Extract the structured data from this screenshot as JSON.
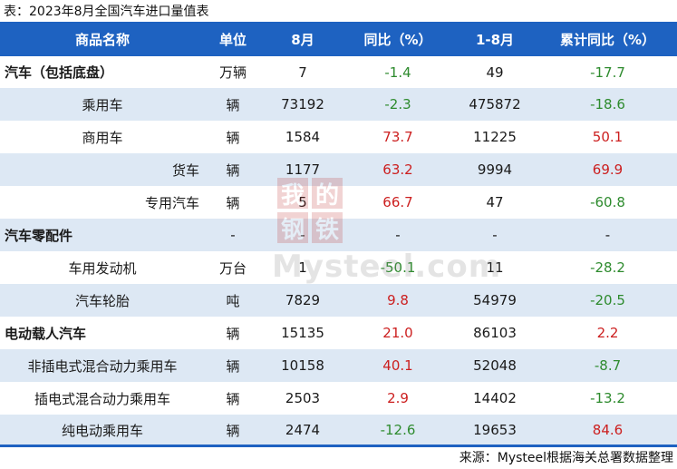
{
  "caption": "表：2023年8月全国汽车进口量值表",
  "headers": {
    "name": "商品名称",
    "unit": "单位",
    "aug": "8月",
    "yoy": "同比（%）",
    "ytd": "1-8月",
    "cum_yoy": "累计同比（%）"
  },
  "rows": [
    {
      "name": "汽车（包括底盘）",
      "unit": "万辆",
      "aug": "7",
      "yoy": "-1.4",
      "ytd": "49",
      "cum_yoy": "-17.7"
    },
    {
      "name": "乘用车",
      "unit": "辆",
      "aug": "73192",
      "yoy": "-2.3",
      "ytd": "475872",
      "cum_yoy": "-18.6"
    },
    {
      "name": "商用车",
      "unit": "辆",
      "aug": "1584",
      "yoy": "73.7",
      "ytd": "11225",
      "cum_yoy": "50.1"
    },
    {
      "name": "货车",
      "unit": "辆",
      "aug": "1177",
      "yoy": "63.2",
      "ytd": "9994",
      "cum_yoy": "69.9"
    },
    {
      "name": "专用汽车",
      "unit": "辆",
      "aug": "5",
      "yoy": "66.7",
      "ytd": "47",
      "cum_yoy": "-60.8"
    },
    {
      "name": "汽车零配件",
      "unit": "-",
      "aug": "-",
      "yoy": "-",
      "ytd": "-",
      "cum_yoy": "-"
    },
    {
      "name": "车用发动机",
      "unit": "万台",
      "aug": "1",
      "yoy": "-50.1",
      "ytd": "11",
      "cum_yoy": "-28.2"
    },
    {
      "name": "汽车轮胎",
      "unit": "吨",
      "aug": "7829",
      "yoy": "9.8",
      "ytd": "54979",
      "cum_yoy": "-20.5"
    },
    {
      "name": "电动载人汽车",
      "unit": "辆",
      "aug": "15135",
      "yoy": "21.0",
      "ytd": "86103",
      "cum_yoy": "2.2"
    },
    {
      "name": "非插电式混合动力乘用车",
      "unit": "辆",
      "aug": "10158",
      "yoy": "40.1",
      "ytd": "52048",
      "cum_yoy": "-8.7"
    },
    {
      "name": "插电式混合动力乘用车",
      "unit": "辆",
      "aug": "2503",
      "yoy": "2.9",
      "ytd": "14402",
      "cum_yoy": "-13.2"
    },
    {
      "name": "纯电动乘用车",
      "unit": "辆",
      "aug": "2474",
      "yoy": "-12.6",
      "ytd": "19653",
      "cum_yoy": "84.6"
    }
  ],
  "watermark": {
    "glyphs": [
      "我",
      "的",
      "钢",
      "铁"
    ],
    "text": "Mysteel.com"
  },
  "source": "来源：Mysteel根据海关总署数据整理",
  "colors": {
    "header_bg": "#1e62c1",
    "alt_row": "#dde8f4",
    "negative": "#2e8b2e",
    "positive": "#cc1f1f"
  }
}
